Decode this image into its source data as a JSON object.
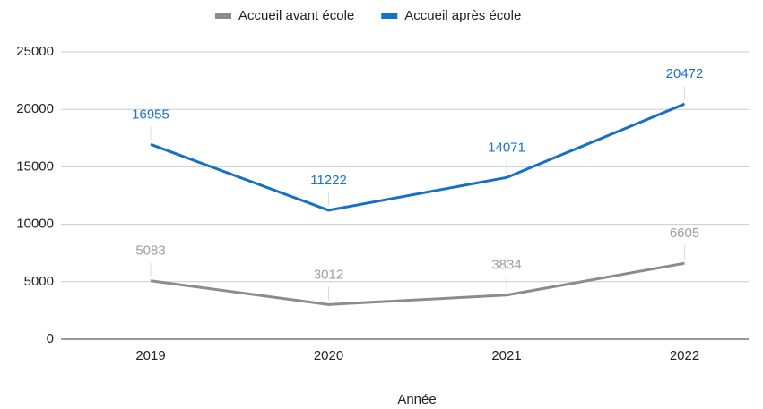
{
  "chart_data": {
    "type": "line",
    "x_label": "Année",
    "categories": [
      "2019",
      "2020",
      "2021",
      "2022"
    ],
    "series": [
      {
        "name": "Accueil avant école",
        "color": "#8c8c8c",
        "label_color": "#9e9e9e",
        "values": [
          5083,
          3012,
          3834,
          6605
        ]
      },
      {
        "name": "Accueil après école",
        "color": "#1570c8",
        "label_color": "#1a73c8",
        "values": [
          16955,
          11222,
          14071,
          20472
        ]
      }
    ],
    "ylim": [
      0,
      25000
    ],
    "yticks": [
      0,
      5000,
      10000,
      15000,
      20000,
      25000
    ],
    "grid": true,
    "legend": "top"
  }
}
